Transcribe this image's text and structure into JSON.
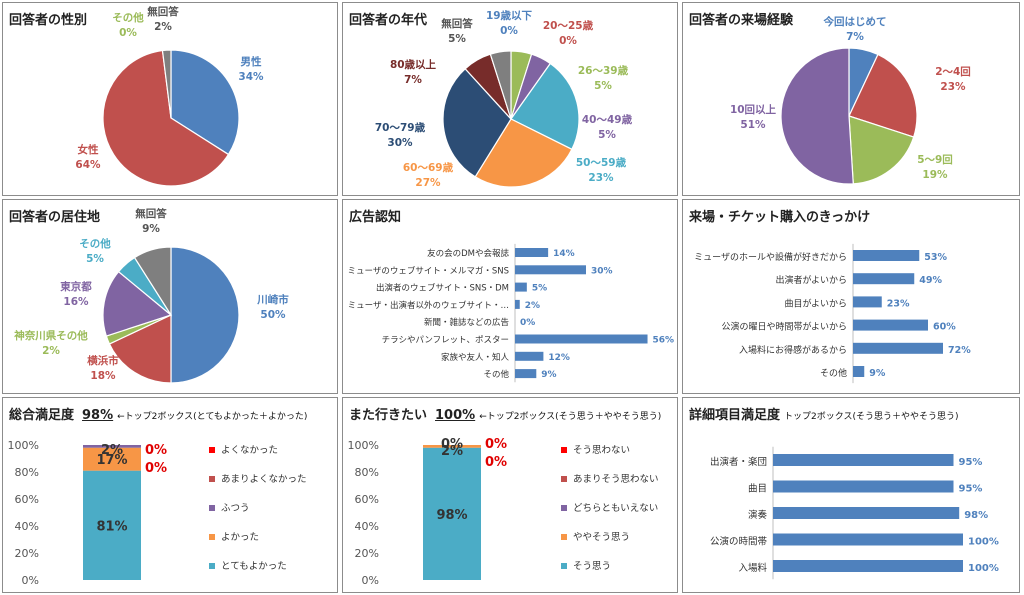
{
  "panels": {
    "gender": {
      "title": "回答者の性別"
    },
    "age": {
      "title": "回答者の年代"
    },
    "visits": {
      "title": "回答者の来場経験"
    },
    "residence": {
      "title": "回答者の居住地"
    },
    "ad": {
      "title": "広告認知"
    },
    "trigger": {
      "title": "来場・チケット購入のきっかけ"
    },
    "overall": {
      "title": "総合満足度",
      "top2": "98%",
      "note": "←トップ2ボックス(とてもよかった＋よかった)"
    },
    "again": {
      "title": "また行きたい",
      "top2": "100%",
      "note": "←トップ2ボックス(そう思う＋ややそう思う)"
    },
    "detail": {
      "title": "詳細項目満足度",
      "note": "トップ2ボックス(そう思う＋ややそう思う)"
    }
  },
  "chart_data": [
    {
      "id": "gender",
      "type": "pie",
      "slices": [
        {
          "label": "男性",
          "value": 34,
          "pct": "34%",
          "color": "#4f81bd"
        },
        {
          "label": "女性",
          "value": 64,
          "pct": "64%",
          "color": "#c0504d"
        },
        {
          "label": "その他",
          "value": 0,
          "pct": "0%",
          "color": "#9bbb59"
        },
        {
          "label": "無回答",
          "value": 2,
          "pct": "2%",
          "color": "#7f7f7f"
        }
      ]
    },
    {
      "id": "age",
      "type": "pie",
      "slices": [
        {
          "label": "19歳以下",
          "value": 0,
          "pct": "0%",
          "color": "#4f81bd"
        },
        {
          "label": "20〜25歳",
          "value": 0,
          "pct": "0%",
          "color": "#c0504d"
        },
        {
          "label": "26〜39歳",
          "value": 5,
          "pct": "5%",
          "color": "#9bbb59"
        },
        {
          "label": "40〜49歳",
          "value": 5,
          "pct": "5%",
          "color": "#8064a2"
        },
        {
          "label": "50〜59歳",
          "value": 23,
          "pct": "23%",
          "color": "#4bacc6"
        },
        {
          "label": "60〜69歳",
          "value": 27,
          "pct": "27%",
          "color": "#f79646"
        },
        {
          "label": "70〜79歳",
          "value": 30,
          "pct": "30%",
          "color": "#2c4d75"
        },
        {
          "label": "80歳以上",
          "value": 7,
          "pct": "7%",
          "color": "#772c2a"
        },
        {
          "label": "無回答",
          "value": 5,
          "pct": "5%",
          "color": "#7f7f7f"
        }
      ]
    },
    {
      "id": "visits",
      "type": "pie",
      "slices": [
        {
          "label": "今回はじめて",
          "value": 7,
          "pct": "7%",
          "color": "#4f81bd"
        },
        {
          "label": "2〜4回",
          "value": 23,
          "pct": "23%",
          "color": "#c0504d"
        },
        {
          "label": "5〜9回",
          "value": 19,
          "pct": "19%",
          "color": "#9bbb59"
        },
        {
          "label": "10回以上",
          "value": 51,
          "pct": "51%",
          "color": "#8064a2"
        }
      ]
    },
    {
      "id": "residence",
      "type": "pie",
      "slices": [
        {
          "label": "川崎市",
          "value": 50,
          "pct": "50%",
          "color": "#4f81bd"
        },
        {
          "label": "横浜市",
          "value": 18,
          "pct": "18%",
          "color": "#c0504d"
        },
        {
          "label": "神奈川県その他",
          "value": 2,
          "pct": "2%",
          "color": "#9bbb59"
        },
        {
          "label": "東京都",
          "value": 16,
          "pct": "16%",
          "color": "#8064a2"
        },
        {
          "label": "その他",
          "value": 5,
          "pct": "5%",
          "color": "#4bacc6"
        },
        {
          "label": "無回答",
          "value": 9,
          "pct": "9%",
          "color": "#7f7f7f"
        }
      ]
    },
    {
      "id": "ad",
      "type": "bar",
      "xlim": [
        0,
        60
      ],
      "color": "#4f81bd",
      "categories": [
        "友の会のDMや会報誌",
        "ミューザのウェブサイト・メルマガ・SNS",
        "出演者のウェブサイト・SNS・DM",
        "ミューザ・出演者以外のウェブサイト・…",
        "新聞・雑誌などの広告",
        "チラシやパンフレット、ポスター",
        "家族や友人・知人",
        "その他"
      ],
      "values": [
        14,
        30,
        5,
        2,
        0,
        56,
        12,
        9
      ],
      "labels": [
        "14%",
        "30%",
        "5%",
        "2%",
        "0%",
        "56%",
        "12%",
        "9%"
      ]
    },
    {
      "id": "trigger",
      "type": "bar",
      "xlim": [
        0,
        100
      ],
      "color": "#4f81bd",
      "categories": [
        "ミューザのホールや設備が好きだから",
        "出演者がよいから",
        "曲目がよいから",
        "公演の曜日や時間帯がよいから",
        "入場料にお得感があるから",
        "その他"
      ],
      "values": [
        53,
        49,
        23,
        60,
        72,
        9
      ],
      "labels": [
        "53%",
        "49%",
        "23%",
        "60%",
        "72%",
        "9%"
      ]
    },
    {
      "id": "overall",
      "type": "bar",
      "stacked": true,
      "ylim": [
        0,
        100
      ],
      "yticks": [
        "0%",
        "20%",
        "40%",
        "60%",
        "80%",
        "100%"
      ],
      "series": [
        {
          "name": "とてもよかった",
          "value": 81,
          "label": "81%",
          "color": "#4bacc6"
        },
        {
          "name": "よかった",
          "value": 17,
          "label": "17%",
          "color": "#f79646"
        },
        {
          "name": "ふつう",
          "value": 2,
          "label": "2%",
          "color": "#8064a2"
        },
        {
          "name": "あまりよくなかった",
          "value": 0,
          "label": "0%",
          "color": "#c0504d"
        },
        {
          "name": "よくなかった",
          "value": 0,
          "label": "0%",
          "color": "#ff0000"
        }
      ]
    },
    {
      "id": "again",
      "type": "bar",
      "stacked": true,
      "ylim": [
        0,
        100
      ],
      "yticks": [
        "0%",
        "20%",
        "40%",
        "60%",
        "80%",
        "100%"
      ],
      "series": [
        {
          "name": "そう思う",
          "value": 98,
          "label": "98%",
          "color": "#4bacc6"
        },
        {
          "name": "ややそう思う",
          "value": 2,
          "label": "2%",
          "color": "#f79646"
        },
        {
          "name": "どちらともいえない",
          "value": 0,
          "label": "0%",
          "color": "#8064a2"
        },
        {
          "name": "あまりそう思わない",
          "value": 0,
          "label": "0%",
          "color": "#c0504d"
        },
        {
          "name": "そう思わない",
          "value": 0,
          "label": "0%",
          "color": "#ff0000"
        }
      ]
    },
    {
      "id": "detail",
      "type": "bar",
      "xlim": [
        0,
        100
      ],
      "color": "#4f81bd",
      "categories": [
        "出演者・楽団",
        "曲目",
        "演奏",
        "公演の時間帯",
        "入場料"
      ],
      "values": [
        95,
        95,
        98,
        100,
        100
      ],
      "labels": [
        "95%",
        "95%",
        "98%",
        "100%",
        "100%"
      ]
    }
  ]
}
